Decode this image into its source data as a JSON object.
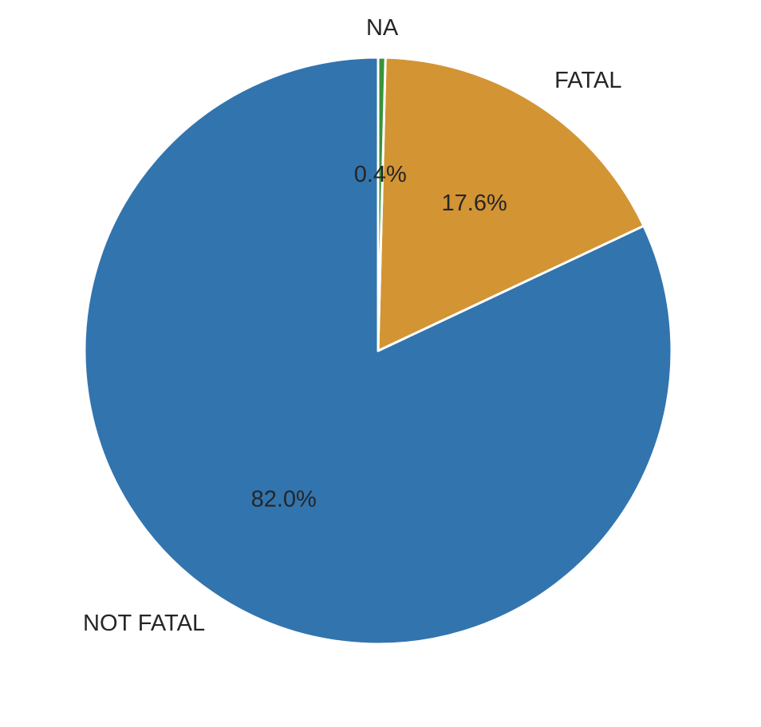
{
  "chart_data": {
    "type": "pie",
    "title": "",
    "slices": [
      {
        "label": "NOT FATAL",
        "value": 82.0,
        "pct_label": "82.0%",
        "color": "#3274ae"
      },
      {
        "label": "FATAL",
        "value": 17.6,
        "pct_label": "17.6%",
        "color": "#d39434"
      },
      {
        "label": "NA",
        "value": 0.4,
        "pct_label": "0.4%",
        "color": "#3a923a"
      }
    ],
    "start_angle_deg": -90,
    "direction": "counterclockwise",
    "legend": "none"
  }
}
